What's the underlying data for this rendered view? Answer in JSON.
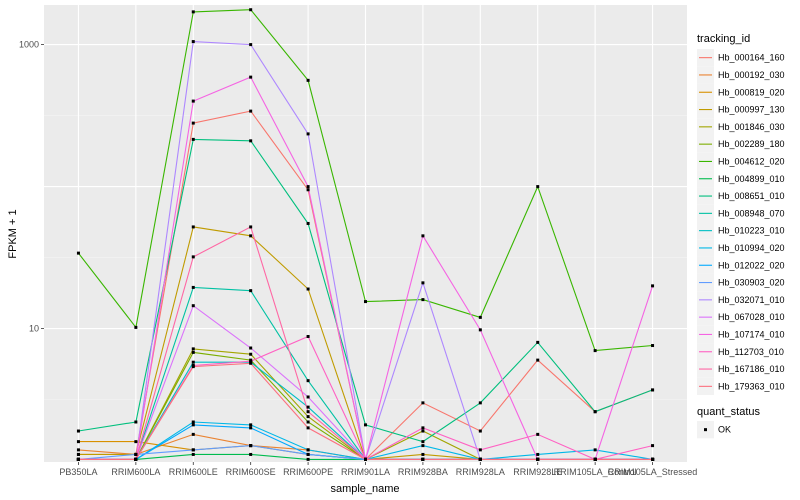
{
  "chart_data": {
    "type": "line",
    "xlabel": "sample_name",
    "ylabel": "FPKM + 1",
    "y_scale": "log10",
    "ylim": [
      1.15,
      1900
    ],
    "y_ticks": [
      10,
      1000
    ],
    "y_tick_labels": [
      "10",
      "1000"
    ],
    "grid": true,
    "background": "#ebebeb",
    "categories": [
      "PB350LA",
      "RRIM600LA",
      "RRIM600LE",
      "RRIM600SE",
      "RRIM600PE",
      "RRIM901LA",
      "RRIM928BA",
      "RRIM928LA",
      "RRIM928LE",
      "RRIM105LA_Control",
      "RRIM105LA_Stressed"
    ],
    "legend": {
      "position": "right",
      "color_title": "tracking_id",
      "shape_title": "quant_status",
      "shape_entries": [
        "OK"
      ]
    },
    "series": [
      {
        "name": "Hb_000164_160",
        "color": "#F8766D",
        "values": [
          1.3,
          1.3,
          280,
          340,
          95,
          1.2,
          3.0,
          1.9,
          6.0,
          2.6,
          3.7
        ]
      },
      {
        "name": "Hb_000192_030",
        "color": "#EA8331",
        "values": [
          1.4,
          1.3,
          1.8,
          1.5,
          1.4,
          1.2,
          1.2,
          1.2,
          1.2,
          1.2,
          1.2
        ]
      },
      {
        "name": "Hb_000819_020",
        "color": "#D89000",
        "values": [
          1.6,
          1.6,
          1.4,
          1.5,
          1.3,
          1.2,
          1.2,
          1.2,
          1.2,
          1.2,
          1.2
        ]
      },
      {
        "name": "Hb_000997_130",
        "color": "#C09B00",
        "values": [
          1.3,
          1.3,
          52,
          45,
          19,
          1.2,
          1.3,
          1.2,
          1.2,
          1.2,
          1.2
        ]
      },
      {
        "name": "Hb_001846_030",
        "color": "#A3A500",
        "values": [
          1.2,
          1.2,
          7.2,
          6.6,
          2.4,
          1.2,
          1.9,
          1.2,
          1.2,
          1.2,
          1.2
        ]
      },
      {
        "name": "Hb_002289_180",
        "color": "#7CAE00",
        "values": [
          1.2,
          1.2,
          6.8,
          6.0,
          2.2,
          1.2,
          1.2,
          1.2,
          1.2,
          1.2,
          1.2
        ]
      },
      {
        "name": "Hb_004612_020",
        "color": "#39B600",
        "values": [
          34,
          10.2,
          1700,
          1760,
          560,
          15.5,
          16,
          12,
          100,
          7.0,
          7.6
        ]
      },
      {
        "name": "Hb_004899_010",
        "color": "#00BB4E",
        "values": [
          1.2,
          1.2,
          1.3,
          1.3,
          1.2,
          1.2,
          1.2,
          1.2,
          1.2,
          1.2,
          1.2
        ]
      },
      {
        "name": "Hb_008651_010",
        "color": "#00BF7D",
        "values": [
          1.9,
          2.2,
          215,
          210,
          55,
          2.1,
          1.6,
          3.0,
          8.0,
          2.6,
          3.7
        ]
      },
      {
        "name": "Hb_008948_070",
        "color": "#00C1A3",
        "values": [
          1.2,
          1.2,
          19.5,
          18.5,
          4.3,
          1.2,
          1.2,
          1.2,
          1.2,
          1.2,
          1.2
        ]
      },
      {
        "name": "Hb_010223_010",
        "color": "#00BFC4",
        "values": [
          1.2,
          1.2,
          5.8,
          5.8,
          2.8,
          1.2,
          1.2,
          1.2,
          1.2,
          1.2,
          1.2
        ]
      },
      {
        "name": "Hb_010994_020",
        "color": "#00B8E7",
        "values": [
          1.2,
          1.2,
          2.2,
          2.1,
          1.4,
          1.2,
          1.5,
          1.2,
          1.3,
          1.4,
          1.2
        ]
      },
      {
        "name": "Hb_012022_020",
        "color": "#00A9FF",
        "values": [
          1.2,
          1.2,
          2.1,
          2.0,
          1.3,
          1.2,
          1.2,
          1.2,
          1.2,
          1.2,
          1.2
        ]
      },
      {
        "name": "Hb_030903_020",
        "color": "#619CFF",
        "values": [
          1.2,
          1.3,
          1.4,
          1.5,
          1.3,
          1.2,
          1.2,
          1.2,
          1.2,
          1.2,
          1.2
        ]
      },
      {
        "name": "Hb_032071_010",
        "color": "#AE87FF",
        "values": [
          1.2,
          1.2,
          1050,
          1000,
          235,
          1.2,
          21,
          1.2,
          1.2,
          1.2,
          1.2
        ]
      },
      {
        "name": "Hb_067028_010",
        "color": "#DB72FB",
        "values": [
          1.2,
          1.2,
          14.5,
          7.3,
          3.3,
          1.2,
          1.2,
          1.2,
          1.2,
          1.2,
          1.2
        ]
      },
      {
        "name": "Hb_107174_010",
        "color": "#F564E3",
        "values": [
          1.2,
          1.2,
          400,
          590,
          100,
          1.2,
          45,
          9.8,
          1.2,
          1.2,
          20
        ]
      },
      {
        "name": "Hb_112703_010",
        "color": "#FF61C3",
        "values": [
          1.2,
          1.2,
          5.5,
          5.9,
          8.8,
          1.2,
          2.0,
          1.4,
          1.8,
          1.2,
          1.5
        ]
      },
      {
        "name": "Hb_167186_010",
        "color": "#FF67A4",
        "values": [
          1.2,
          1.2,
          32,
          52,
          2.6,
          1.2,
          1.2,
          1.2,
          1.2,
          1.2,
          1.2
        ]
      },
      {
        "name": "Hb_179363_010",
        "color": "#FC717F",
        "values": [
          1.2,
          1.2,
          5.4,
          5.7,
          2.0,
          1.2,
          1.2,
          1.2,
          1.2,
          1.2,
          1.2
        ]
      }
    ]
  }
}
